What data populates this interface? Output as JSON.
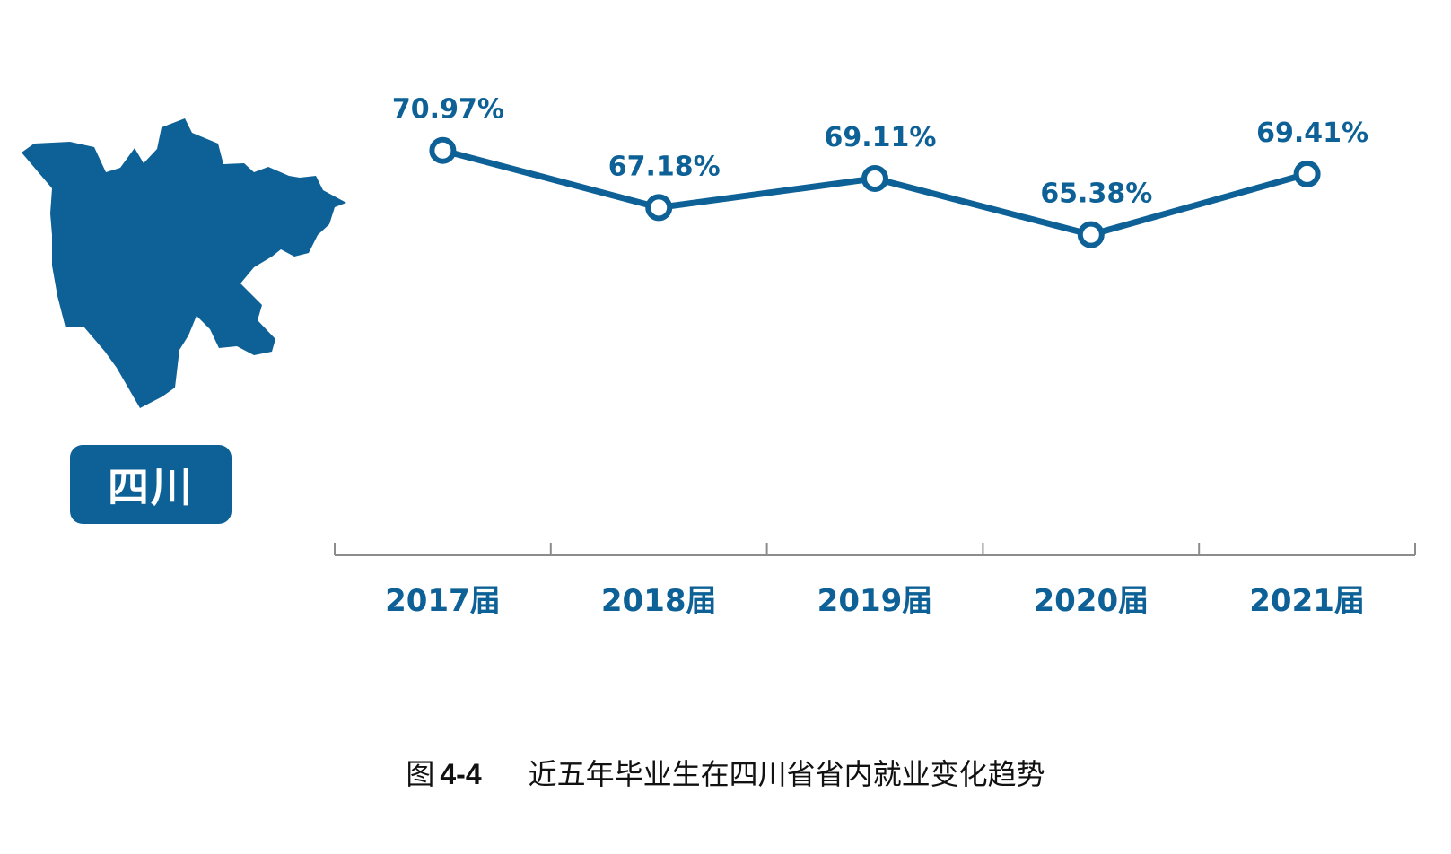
{
  "colors": {
    "accent": "#0d6196",
    "axis": "#8c8c8c",
    "badge_text": "#ffffff"
  },
  "province": {
    "map_icon": "sichuan-map-icon",
    "badge_label": "四川"
  },
  "caption": {
    "prefix": "图",
    "number": "4-4",
    "title": "近五年毕业生在四川省省内就业变化趋势"
  },
  "chart_data": {
    "type": "line",
    "categories": [
      "2017届",
      "2018届",
      "2019届",
      "2020届",
      "2021届"
    ],
    "series": [
      {
        "values": [
          70.97,
          67.18,
          69.11,
          65.38,
          69.41
        ]
      }
    ],
    "data_labels": [
      "70.97%",
      "67.18%",
      "69.11%",
      "65.38%",
      "69.41%"
    ],
    "unit": "%",
    "grid": false,
    "y_axis_visible": false,
    "ylim": [
      50,
      75
    ]
  }
}
